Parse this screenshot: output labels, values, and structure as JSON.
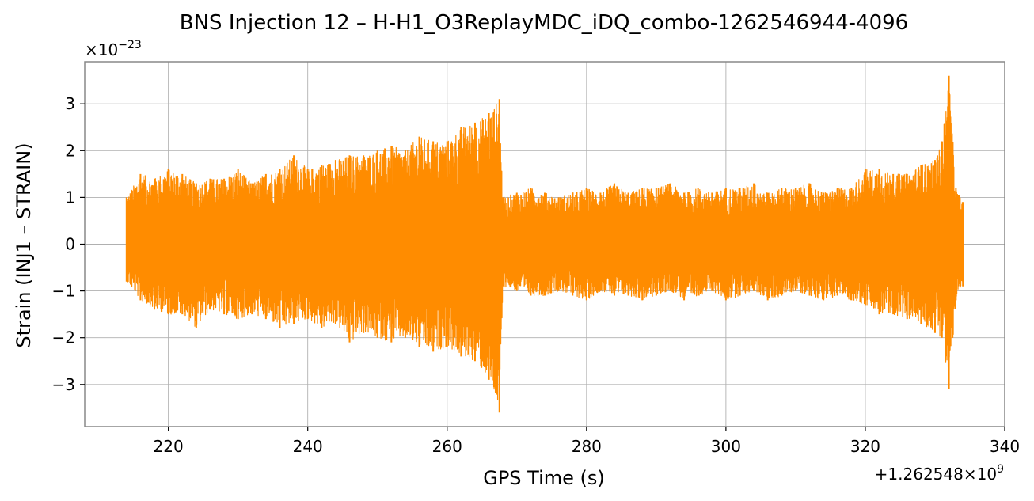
{
  "chart_data": {
    "type": "line",
    "title": "BNS Injection 12 – H-H1_O3ReplayMDC_iDQ_combo-1262546944-4096",
    "xlabel": "GPS Time (s)",
    "ylabel": "Strain (INJ1 – STRAIN)",
    "x_offset_label": "+1.262548×10",
    "x_offset_exponent": "9",
    "y_scale_label": "×10",
    "y_scale_exponent": "−23",
    "xlim": [
      208,
      340
    ],
    "ylim": [
      -3.9,
      3.9
    ],
    "x_ticks": [
      220,
      240,
      260,
      280,
      300,
      320,
      340
    ],
    "x_tick_labels": [
      "220",
      "240",
      "260",
      "280",
      "300",
      "320",
      "340"
    ],
    "y_ticks": [
      -3,
      -2,
      -1,
      0,
      1,
      2,
      3
    ],
    "y_tick_labels": [
      "−3",
      "−2",
      "−1",
      "0",
      "1",
      "2",
      "3"
    ],
    "grid": true,
    "series": [
      {
        "color": "#ff8c00",
        "x_start": 214,
        "x_end": 334,
        "envelope": {
          "x": [
            214,
            216,
            218,
            220,
            222,
            224,
            226,
            228,
            230,
            232,
            234,
            236,
            238,
            240,
            242,
            244,
            246,
            248,
            250,
            252,
            254,
            256,
            258,
            260,
            262,
            264,
            266,
            267.5,
            268,
            270,
            272,
            274,
            276,
            278,
            280,
            282,
            284,
            286,
            288,
            290,
            292,
            294,
            296,
            298,
            300,
            302,
            304,
            306,
            308,
            310,
            312,
            314,
            316,
            318,
            320,
            322,
            324,
            326,
            328,
            330,
            331,
            332,
            333,
            334
          ],
          "y_upper": [
            1.0,
            1.5,
            1.4,
            1.6,
            1.5,
            1.3,
            1.4,
            1.4,
            1.6,
            1.3,
            1.5,
            1.6,
            1.9,
            1.6,
            1.7,
            1.8,
            1.9,
            1.9,
            2.0,
            2.1,
            2.0,
            2.3,
            2.2,
            2.2,
            2.5,
            2.6,
            2.8,
            3.1,
            1.0,
            1.1,
            1.2,
            1.1,
            1.0,
            1.1,
            1.2,
            1.1,
            1.3,
            1.1,
            1.2,
            1.2,
            1.3,
            1.1,
            1.2,
            1.1,
            1.2,
            1.2,
            1.3,
            1.1,
            1.2,
            1.2,
            1.3,
            1.1,
            1.2,
            1.2,
            1.6,
            1.6,
            1.5,
            1.5,
            1.7,
            1.8,
            2.2,
            3.6,
            1.2,
            0.9
          ],
          "y_lower": [
            -0.8,
            -1.2,
            -1.4,
            -1.5,
            -1.5,
            -1.8,
            -1.4,
            -1.5,
            -1.6,
            -1.5,
            -1.6,
            -1.8,
            -1.7,
            -1.6,
            -1.8,
            -1.7,
            -2.1,
            -1.9,
            -2.0,
            -2.1,
            -2.0,
            -2.2,
            -2.3,
            -2.2,
            -2.4,
            -2.5,
            -2.9,
            -3.6,
            -0.9,
            -1.0,
            -1.1,
            -1.1,
            -1.0,
            -1.1,
            -1.2,
            -1.0,
            -1.1,
            -1.1,
            -1.2,
            -1.1,
            -1.0,
            -1.2,
            -1.1,
            -1.0,
            -1.2,
            -1.1,
            -1.0,
            -1.2,
            -1.1,
            -1.0,
            -1.1,
            -1.2,
            -1.1,
            -1.2,
            -1.3,
            -1.5,
            -1.5,
            -1.6,
            -1.7,
            -1.9,
            -2.0,
            -3.1,
            -1.2,
            -0.9
          ]
        }
      }
    ]
  }
}
